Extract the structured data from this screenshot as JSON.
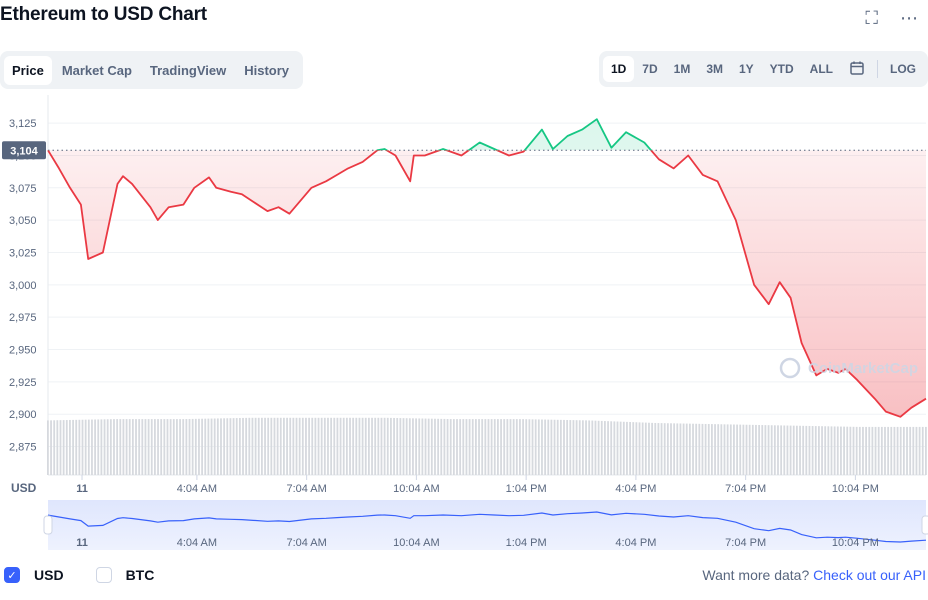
{
  "header": {
    "title": "Ethereum to USD Chart",
    "fullscreen_icon": "fullscreen-icon",
    "more_icon": "more-icon"
  },
  "tabs": [
    "Price",
    "Market Cap",
    "TradingView",
    "History"
  ],
  "active_tab": "Price",
  "ranges": [
    "1D",
    "7D",
    "1M",
    "3M",
    "1Y",
    "YTD",
    "ALL"
  ],
  "active_range": "1D",
  "calendar_icon": "calendar-icon",
  "log_label": "LOG",
  "currency_label": "USD",
  "current_price_label": "3,104",
  "watermark": "CoinMarketCap",
  "legend": {
    "usd_label": "USD",
    "btc_label": "BTC",
    "usd_checked": true,
    "btc_checked": false
  },
  "api": {
    "prompt": "Want more data?",
    "link": "Check out our API"
  },
  "colors": {
    "up": "#16c784",
    "down": "#ea3943",
    "nav_line": "#3861fb",
    "volume": "#d6d9de"
  },
  "chart_data": {
    "type": "line",
    "baseline": 3104,
    "ylim": [
      2853,
      3139
    ],
    "ytick_labels": [
      "3,125",
      "3,100",
      "3,075",
      "3,050",
      "3,025",
      "3,000",
      "2,975",
      "2,950",
      "2,925",
      "2,900",
      "2,875"
    ],
    "ytick_values": [
      3125,
      3100,
      3075,
      3050,
      3025,
      3000,
      2975,
      2950,
      2925,
      2900,
      2875
    ],
    "xtick_labels": [
      "11",
      "4:04 AM",
      "7:04 AM",
      "10:04 AM",
      "1:04 PM",
      "4:04 PM",
      "7:04 PM",
      "10:04 PM"
    ],
    "xtick_hours": [
      0.93,
      4.07,
      7.07,
      10.07,
      13.07,
      16.07,
      19.07,
      22.07
    ],
    "x_hours": [
      0.0,
      0.3,
      0.6,
      0.9,
      1.1,
      1.5,
      1.9,
      2.05,
      2.3,
      2.8,
      3.0,
      3.3,
      3.7,
      4.0,
      4.4,
      4.6,
      5.0,
      5.3,
      6.0,
      6.3,
      6.6,
      7.2,
      7.6,
      7.9,
      8.2,
      8.6,
      9.0,
      9.2,
      9.5,
      9.9,
      10.0,
      10.3,
      10.8,
      11.3,
      11.8,
      12.2,
      12.6,
      13.0,
      13.5,
      13.8,
      14.2,
      14.6,
      15.0,
      15.4,
      15.8,
      16.3,
      16.7,
      17.1,
      17.5,
      17.9,
      18.3,
      18.8,
      19.3,
      19.7,
      20.0,
      20.3,
      20.6,
      21.0,
      21.3,
      21.6,
      21.8,
      22.1,
      22.6,
      22.9,
      23.3,
      23.6,
      24.0
    ],
    "price": [
      3104,
      3090,
      3075,
      3062,
      3020,
      3025,
      3078,
      3084,
      3078,
      3060,
      3050,
      3060,
      3062,
      3075,
      3083,
      3075,
      3072,
      3070,
      3057,
      3060,
      3055,
      3075,
      3080,
      3085,
      3090,
      3095,
      3104,
      3105,
      3100,
      3080,
      3100,
      3100,
      3105,
      3100,
      3110,
      3105,
      3100,
      3103,
      3120,
      3105,
      3115,
      3120,
      3128,
      3106,
      3118,
      3110,
      3097,
      3090,
      3100,
      3085,
      3080,
      3050,
      3000,
      2985,
      3002,
      2990,
      2955,
      2930,
      2935,
      2932,
      2935,
      2927,
      2912,
      2902,
      2898,
      2905,
      2912
    ],
    "volume_level": [
      0.42,
      0.43,
      0.43,
      0.44,
      0.44,
      0.44,
      0.43,
      0.43,
      0.42,
      0.4,
      0.39,
      0.38,
      0.37,
      0.37
    ],
    "series": [
      {
        "name": "USD",
        "values_ref": "price"
      }
    ]
  }
}
